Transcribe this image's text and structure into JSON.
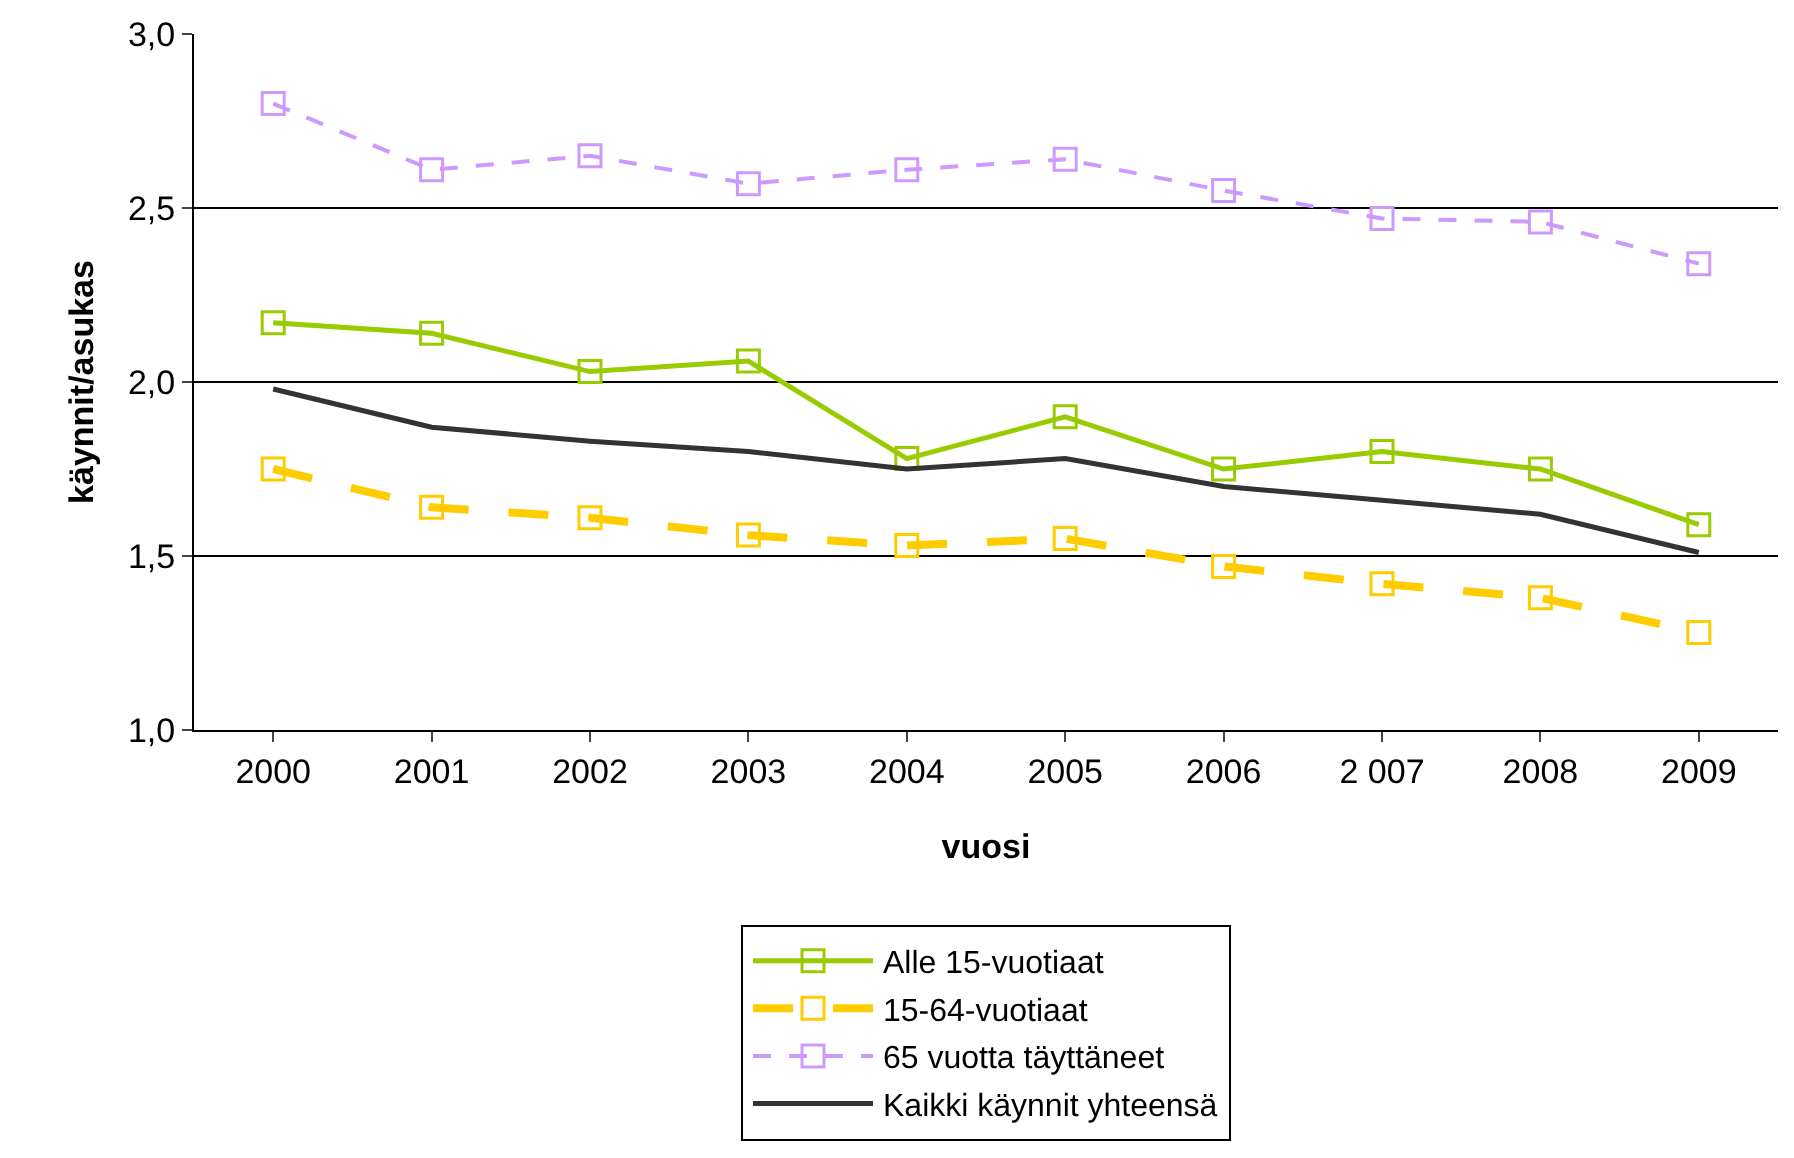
{
  "chart_data": {
    "type": "line",
    "xlabel": "vuosi",
    "ylabel": "käynnit/asukas",
    "categories": [
      "2000",
      "2001",
      "2002",
      "2003",
      "2004",
      "2005",
      "2006",
      "2 007",
      "2008",
      "2009"
    ],
    "ylim": [
      1.0,
      3.0
    ],
    "yticks": [
      {
        "value": 1.0,
        "label": "1,0"
      },
      {
        "value": 1.5,
        "label": "1,5"
      },
      {
        "value": 2.0,
        "label": "2,0"
      },
      {
        "value": 2.5,
        "label": "2,5"
      },
      {
        "value": 3.0,
        "label": "3,0"
      }
    ],
    "grid": "y",
    "legend": "bottom",
    "series": [
      {
        "name": "Alle 15-vuotiaat",
        "color": "#99cc00",
        "marker": "square",
        "line_style": "solid",
        "values": [
          2.17,
          2.14,
          2.03,
          2.06,
          1.78,
          1.9,
          1.75,
          1.8,
          1.75,
          1.59
        ]
      },
      {
        "name": "15-64-vuotiaat",
        "color": "#ffcc00",
        "marker": "square",
        "line_style": "dashed",
        "values": [
          1.75,
          1.64,
          1.61,
          1.56,
          1.53,
          1.55,
          1.47,
          1.42,
          1.38,
          1.28
        ]
      },
      {
        "name": "65 vuotta täyttäneet",
        "color": "#cc99ff",
        "marker": "square",
        "line_style": "dotted",
        "values": [
          2.8,
          2.61,
          2.65,
          2.57,
          2.61,
          2.64,
          2.55,
          2.47,
          2.46,
          2.34
        ]
      },
      {
        "name": "Kaikki käynnit yhteensä",
        "color": "#333333",
        "marker": "none",
        "line_style": "solid",
        "values": [
          1.98,
          1.87,
          1.83,
          1.8,
          1.75,
          1.78,
          1.7,
          1.66,
          1.62,
          1.51
        ]
      }
    ]
  }
}
